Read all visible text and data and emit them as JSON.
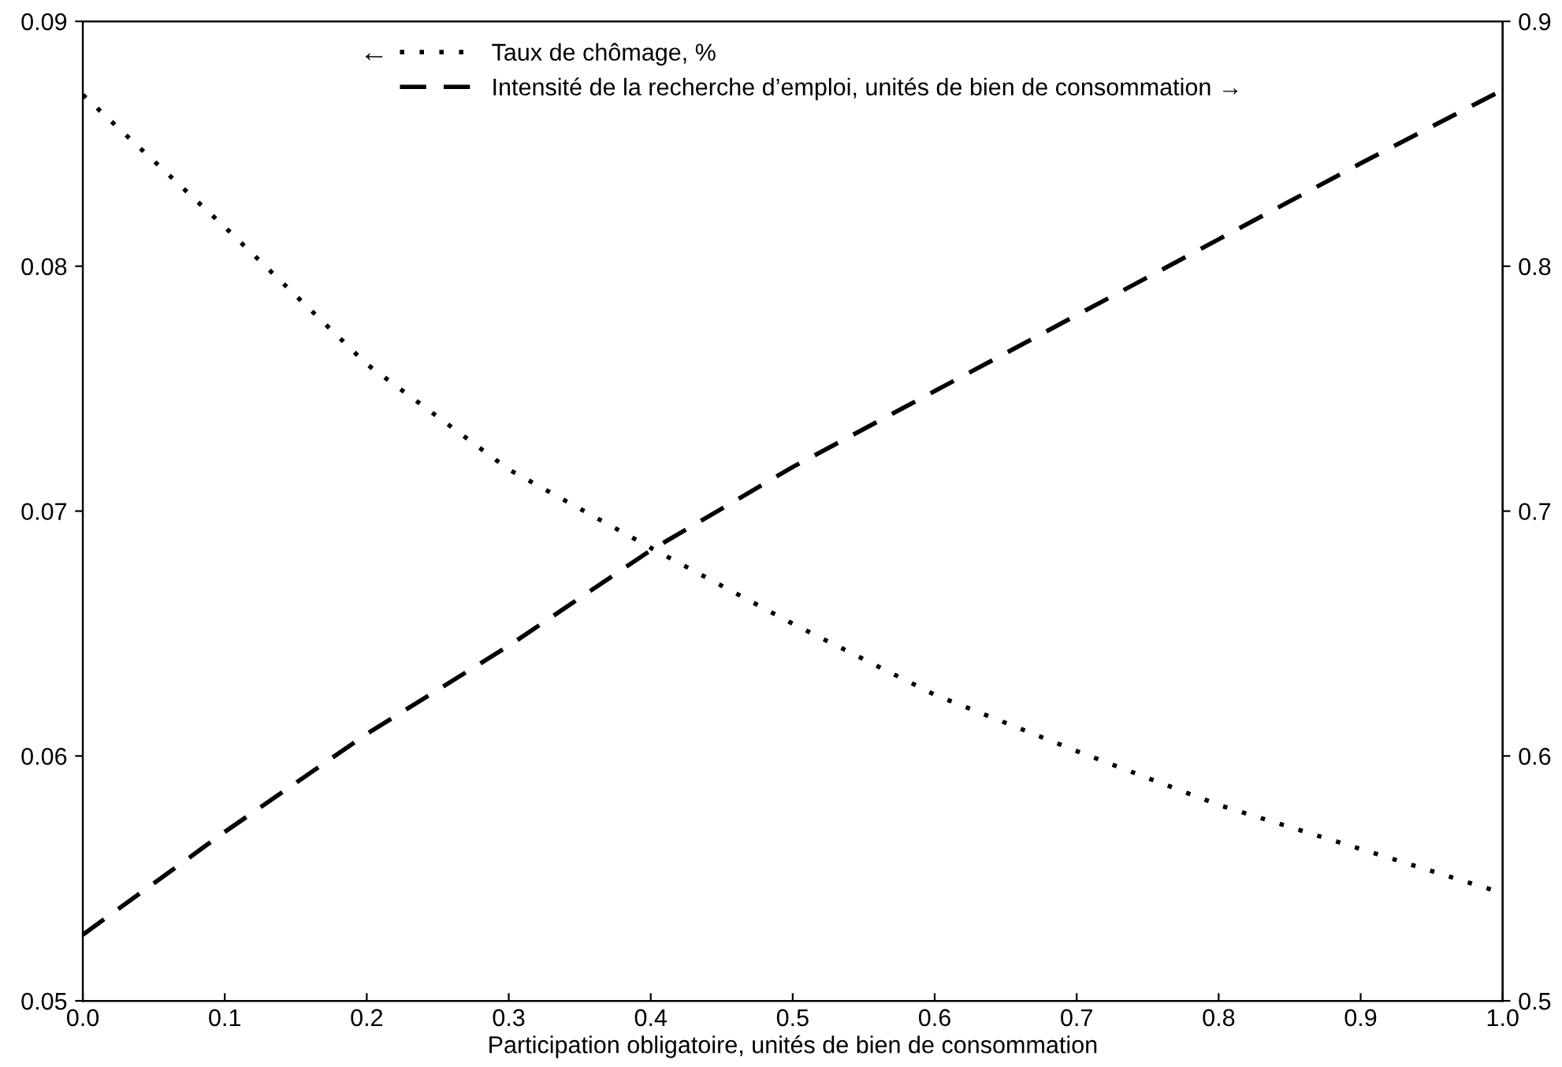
{
  "chart_data": {
    "type": "line",
    "xlabel": "Participation obligatoire, unités de bien de consommation",
    "x": [
      0.0,
      0.1,
      0.2,
      0.3,
      0.4,
      0.5,
      0.6,
      0.7,
      0.8,
      0.9,
      1.0
    ],
    "series": [
      {
        "name": "Taux de chômage, %",
        "color": "#000000",
        "line_style": "dotted",
        "values": [
          0.087,
          0.0816,
          0.076,
          0.0717,
          0.0685,
          0.0654,
          0.0625,
          0.0602,
          0.058,
          0.0562,
          0.0544
        ]
      },
      {
        "name": "Intensité de la recherche d’emploi, unités de bien de consommation →",
        "color": "#000000",
        "line_style": "dashed",
        "axis": "y2",
        "values": [
          0.527,
          0.569,
          0.609,
          0.645,
          0.684,
          0.718,
          0.749,
          0.78,
          0.811,
          0.842,
          0.872
        ]
      }
    ],
    "annotations": [
      "←"
    ],
    "xlim": [
      0.0,
      1.0
    ],
    "xticks": [
      {
        "value": 0.0,
        "label": "0.0"
      },
      0.1,
      0.2,
      0.3,
      0.4,
      0.5,
      0.6,
      0.7,
      0.8,
      0.9,
      {
        "value": 1.0,
        "label": "1.0"
      }
    ],
    "ylim": [
      0.05,
      0.09
    ],
    "yticks": [
      0.05,
      0.06,
      0.07,
      0.08,
      0.09
    ],
    "y2lim": [
      0.5,
      0.9
    ],
    "y2ticks": [
      0.5,
      0.6,
      0.7,
      0.8,
      0.9
    ],
    "grid": false,
    "legend": "top"
  }
}
